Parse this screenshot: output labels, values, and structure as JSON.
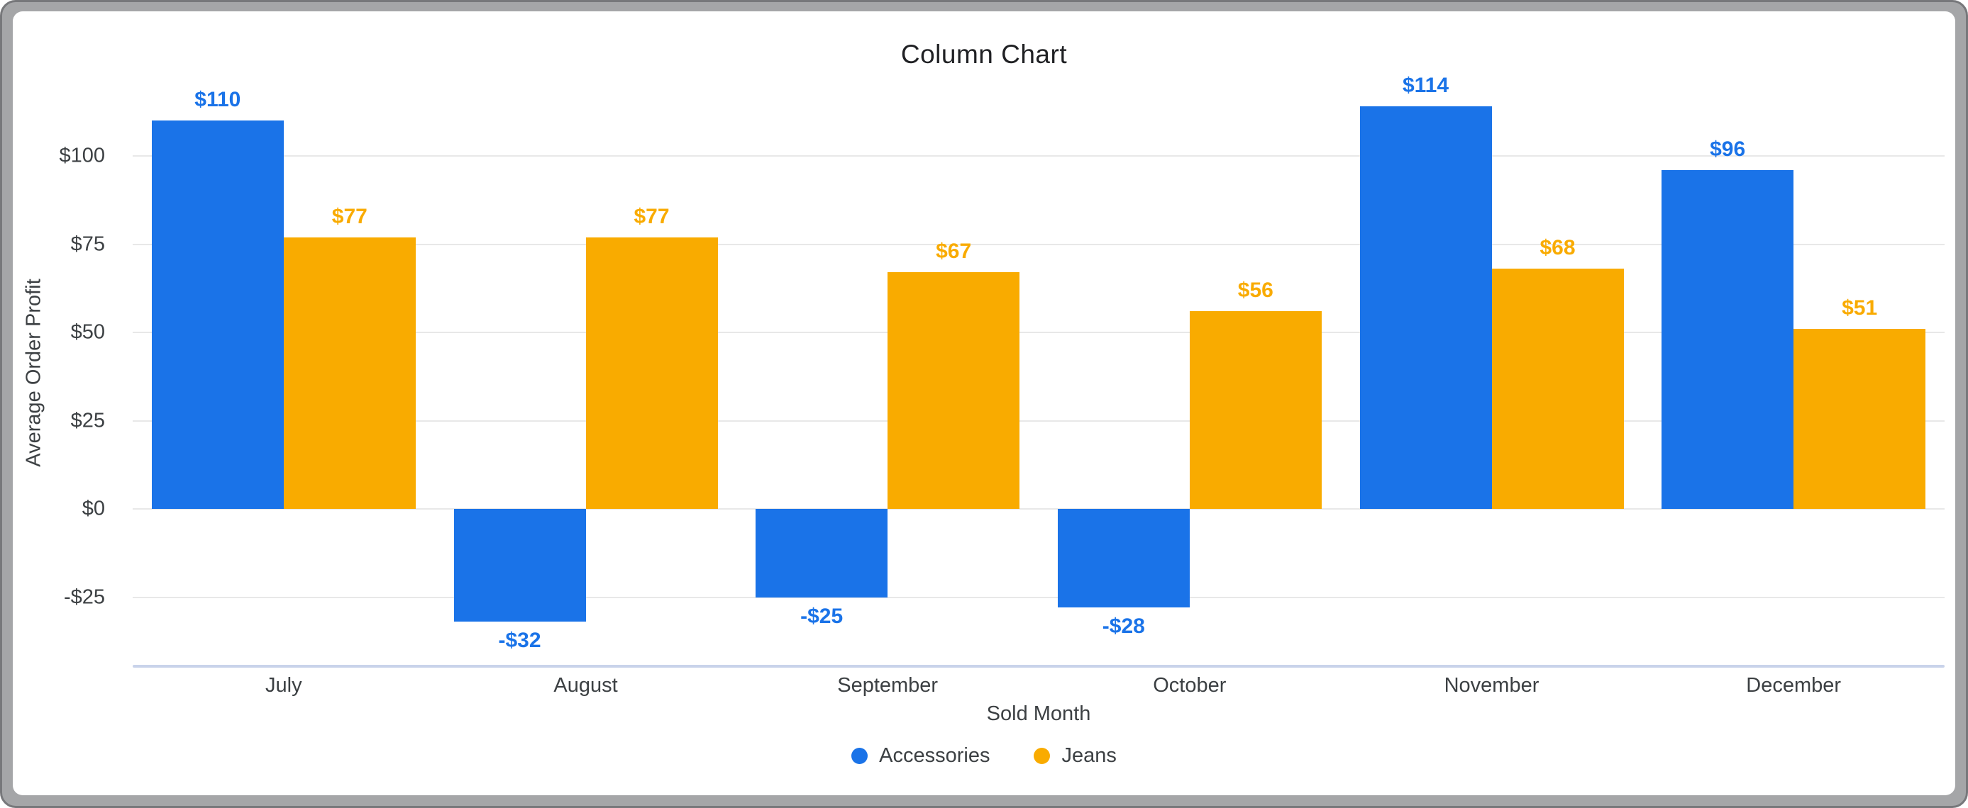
{
  "chart": {
    "title": "Column Chart"
  },
  "chart_data": {
    "type": "bar",
    "title": "Column Chart",
    "categories": [
      "July",
      "August",
      "September",
      "October",
      "November",
      "December"
    ],
    "series": [
      {
        "name": "Accessories",
        "color": "#1a73e8",
        "values": [
          110,
          -32,
          -25,
          -28,
          114,
          96
        ],
        "labels": [
          "$110",
          "-$32",
          "-$25",
          "-$28",
          "$114",
          "$96"
        ]
      },
      {
        "name": "Jeans",
        "color": "#f9ab00",
        "values": [
          77,
          77,
          67,
          56,
          68,
          51
        ],
        "labels": [
          "$77",
          "$77",
          "$67",
          "$56",
          "$68",
          "$51"
        ]
      }
    ],
    "xlabel": "Sold Month",
    "ylabel": "Average Order Profit",
    "ylim": [
      -45,
      122
    ],
    "yticks": [
      100,
      75,
      50,
      25,
      0,
      -25
    ],
    "ytick_labels": [
      "$100",
      "$75",
      "$50",
      "$25",
      "$0",
      "-$25"
    ],
    "grid": true,
    "legend_position": "bottom",
    "colors": {
      "gridline": "#e8e8e8",
      "axis_line": "#c9d3ea",
      "axis_text": "#3c4043",
      "title_text": "#202124"
    }
  }
}
